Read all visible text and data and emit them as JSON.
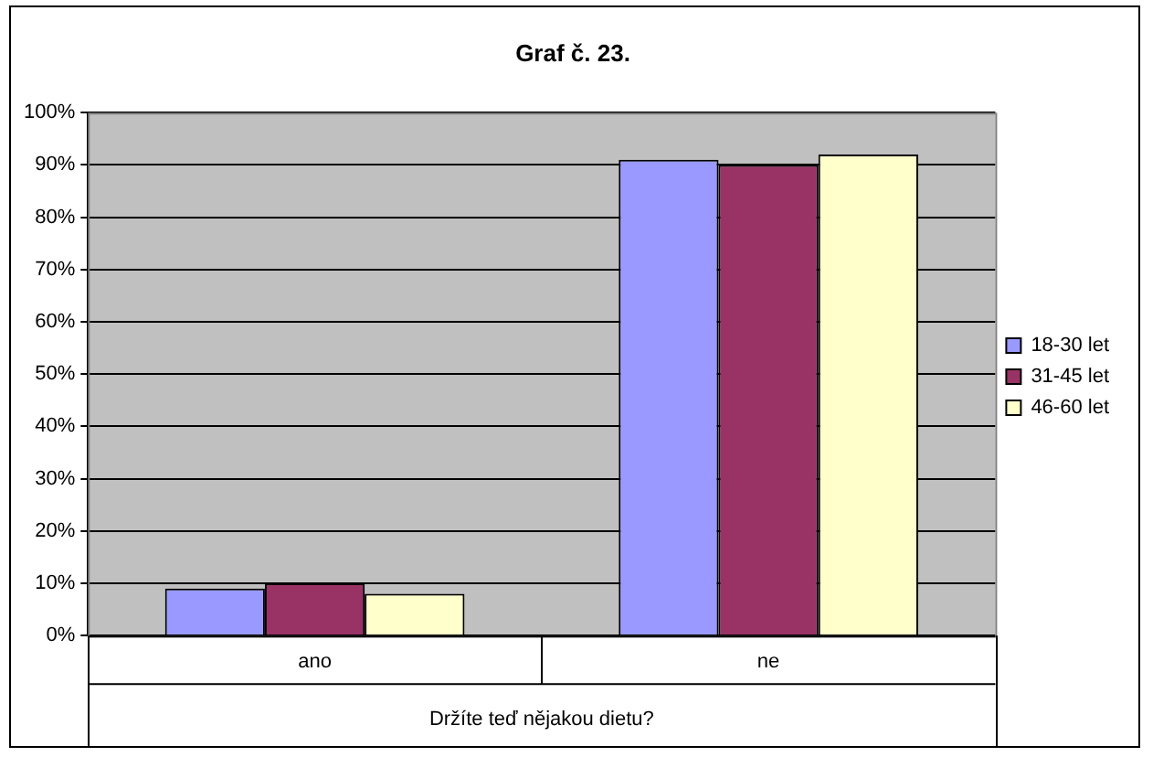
{
  "chart_data": {
    "type": "bar",
    "title": "Graf č. 23.",
    "xlabel": "Držíte teď nějakou dietu?",
    "categories": [
      "ano",
      "ne"
    ],
    "series": [
      {
        "name": "18-30 let",
        "color": "#9999ff",
        "values": [
          9,
          91
        ]
      },
      {
        "name": "31-45 let",
        "color": "#993366",
        "values": [
          10,
          90
        ]
      },
      {
        "name": "46-60 let",
        "color": "#ffffcc",
        "values": [
          8,
          92
        ]
      }
    ],
    "ylim": [
      0,
      100
    ],
    "yticks": [
      {
        "value": 0,
        "label": "0%"
      },
      {
        "value": 10,
        "label": "10%"
      },
      {
        "value": 20,
        "label": "20%"
      },
      {
        "value": 30,
        "label": "30%"
      },
      {
        "value": 40,
        "label": "40%"
      },
      {
        "value": 50,
        "label": "50%"
      },
      {
        "value": 60,
        "label": "60%"
      },
      {
        "value": 70,
        "label": "70%"
      },
      {
        "value": 80,
        "label": "80%"
      },
      {
        "value": 90,
        "label": "90%"
      },
      {
        "value": 100,
        "label": "100%"
      }
    ],
    "grid": "y",
    "legend": "right"
  }
}
